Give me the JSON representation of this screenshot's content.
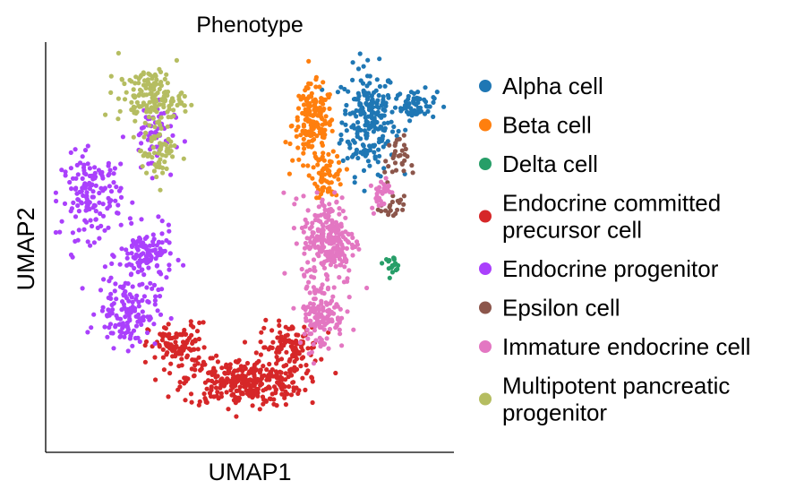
{
  "chart_data": {
    "type": "scatter",
    "title": "Phenotype",
    "xlabel": "UMAP1",
    "ylabel": "UMAP2",
    "xlim": [
      0,
      10
    ],
    "ylim": [
      0,
      10
    ],
    "grid": false,
    "ticks": false,
    "legend_placement": "right",
    "series": [
      {
        "name": "Alpha cell",
        "color": "#1f77b4",
        "clusters": [
          {
            "cx": 8.0,
            "cy": 8.2,
            "sx": 0.45,
            "sy": 0.9,
            "n": 220
          },
          {
            "cx": 9.2,
            "cy": 8.6,
            "sx": 0.35,
            "sy": 0.25,
            "n": 60
          }
        ]
      },
      {
        "name": "Beta cell",
        "color": "#ff7f0e",
        "clusters": [
          {
            "cx": 6.6,
            "cy": 8.1,
            "sx": 0.35,
            "sy": 0.65,
            "n": 170
          },
          {
            "cx": 7.0,
            "cy": 6.8,
            "sx": 0.25,
            "sy": 0.35,
            "n": 60
          }
        ]
      },
      {
        "name": "Delta cell",
        "color": "#279e68",
        "clusters": [
          {
            "cx": 8.6,
            "cy": 4.6,
            "sx": 0.15,
            "sy": 0.12,
            "n": 20
          }
        ]
      },
      {
        "name": "Endocrine committed\nprecursor cell",
        "color": "#d62728",
        "clusters": [
          {
            "cx": 4.8,
            "cy": 1.6,
            "sx": 1.0,
            "sy": 0.4,
            "n": 300
          },
          {
            "cx": 3.2,
            "cy": 2.5,
            "sx": 0.5,
            "sy": 0.4,
            "n": 110
          },
          {
            "cx": 6.0,
            "cy": 2.5,
            "sx": 0.5,
            "sy": 0.4,
            "n": 110
          }
        ]
      },
      {
        "name": "Endocrine progenitor",
        "color": "#aa40fc",
        "clusters": [
          {
            "cx": 1.0,
            "cy": 6.3,
            "sx": 0.5,
            "sy": 0.7,
            "n": 150
          },
          {
            "cx": 2.4,
            "cy": 4.8,
            "sx": 0.45,
            "sy": 0.45,
            "n": 120
          },
          {
            "cx": 1.9,
            "cy": 3.4,
            "sx": 0.5,
            "sy": 0.6,
            "n": 140
          },
          {
            "cx": 2.5,
            "cy": 7.8,
            "sx": 0.4,
            "sy": 0.6,
            "n": 60
          }
        ]
      },
      {
        "name": "Epsilon cell",
        "color": "#8c564b",
        "clusters": [
          {
            "cx": 8.7,
            "cy": 7.2,
            "sx": 0.2,
            "sy": 0.4,
            "n": 30
          },
          {
            "cx": 8.6,
            "cy": 6.0,
            "sx": 0.2,
            "sy": 0.2,
            "n": 20
          }
        ]
      },
      {
        "name": "Immature endocrine cell",
        "color": "#e377c2",
        "clusters": [
          {
            "cx": 7.0,
            "cy": 5.2,
            "sx": 0.45,
            "sy": 0.75,
            "n": 240
          },
          {
            "cx": 6.8,
            "cy": 3.3,
            "sx": 0.4,
            "sy": 0.6,
            "n": 130
          },
          {
            "cx": 8.3,
            "cy": 6.4,
            "sx": 0.15,
            "sy": 0.3,
            "n": 30
          }
        ]
      },
      {
        "name": "Multipotent pancreatic\nprogenitor",
        "color": "#b5bd61",
        "clusters": [
          {
            "cx": 2.5,
            "cy": 8.8,
            "sx": 0.55,
            "sy": 0.45,
            "n": 150
          },
          {
            "cx": 2.7,
            "cy": 7.4,
            "sx": 0.3,
            "sy": 0.5,
            "n": 60
          }
        ]
      }
    ]
  }
}
